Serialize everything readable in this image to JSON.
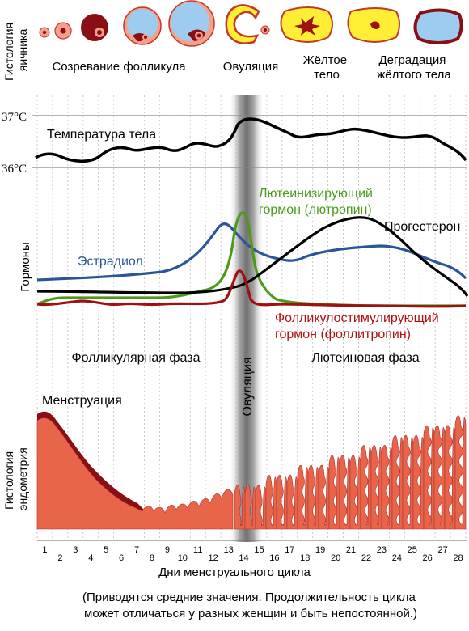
{
  "ovary_section": {
    "side_label_line1": "Гистология",
    "side_label_line2": "яичника",
    "stages": {
      "maturation": "Созревание фолликула",
      "ovulation": "Овуляция",
      "corpus_luteum_line1": "Жёлтое",
      "corpus_luteum_line2": "тело",
      "degradation_line1": "Деградация",
      "degradation_line2": "жёлтого тела"
    }
  },
  "temperature": {
    "label": "Температура тела",
    "tick_high": "37°C",
    "tick_low": "36°C"
  },
  "hormones": {
    "side_label": "Гормоны",
    "estradiol": "Эстрадиол",
    "lh_line1": "Лютеинизирующий",
    "lh_line2": "гормон (лютропин)",
    "progesterone": "Прогестерон",
    "fsh_line1": "Фолликулостимулирующий",
    "fsh_line2": "гормон (фоллитропин)"
  },
  "phases": {
    "follicular": "Фолликулярная фаза",
    "ovulation_vertical": "Овуляция",
    "luteal": "Лютеиновая фаза"
  },
  "endometrium": {
    "side_label_line1": "Гистология",
    "side_label_line2": "эндометрия",
    "menstruation": "Менструация"
  },
  "axis": {
    "days": [
      "1",
      "2",
      "3",
      "4",
      "5",
      "6",
      "7",
      "8",
      "9",
      "10",
      "11",
      "12",
      "13",
      "14",
      "15",
      "16",
      "17",
      "18",
      "19",
      "20",
      "21",
      "22",
      "23",
      "24",
      "25",
      "26",
      "27",
      "28"
    ],
    "title": "Дни менструального цикла"
  },
  "footnote": {
    "line1": "(Приводятся средние значения. Продолжительность цикла",
    "line2": "может отличаться у разных женщин и быть непостоянной.)"
  },
  "colors": {
    "temperature": "#000000",
    "estradiol": "#2a5699",
    "lh": "#4c9a1a",
    "progesterone": "#000000",
    "fsh": "#a01010",
    "lh_label": "#4c9a1a",
    "fsh_label": "#b01010",
    "endometrium": "#e8654a",
    "menstrual_blood": "#8a0f14",
    "follicle_yellow": "#ffee33"
  }
}
